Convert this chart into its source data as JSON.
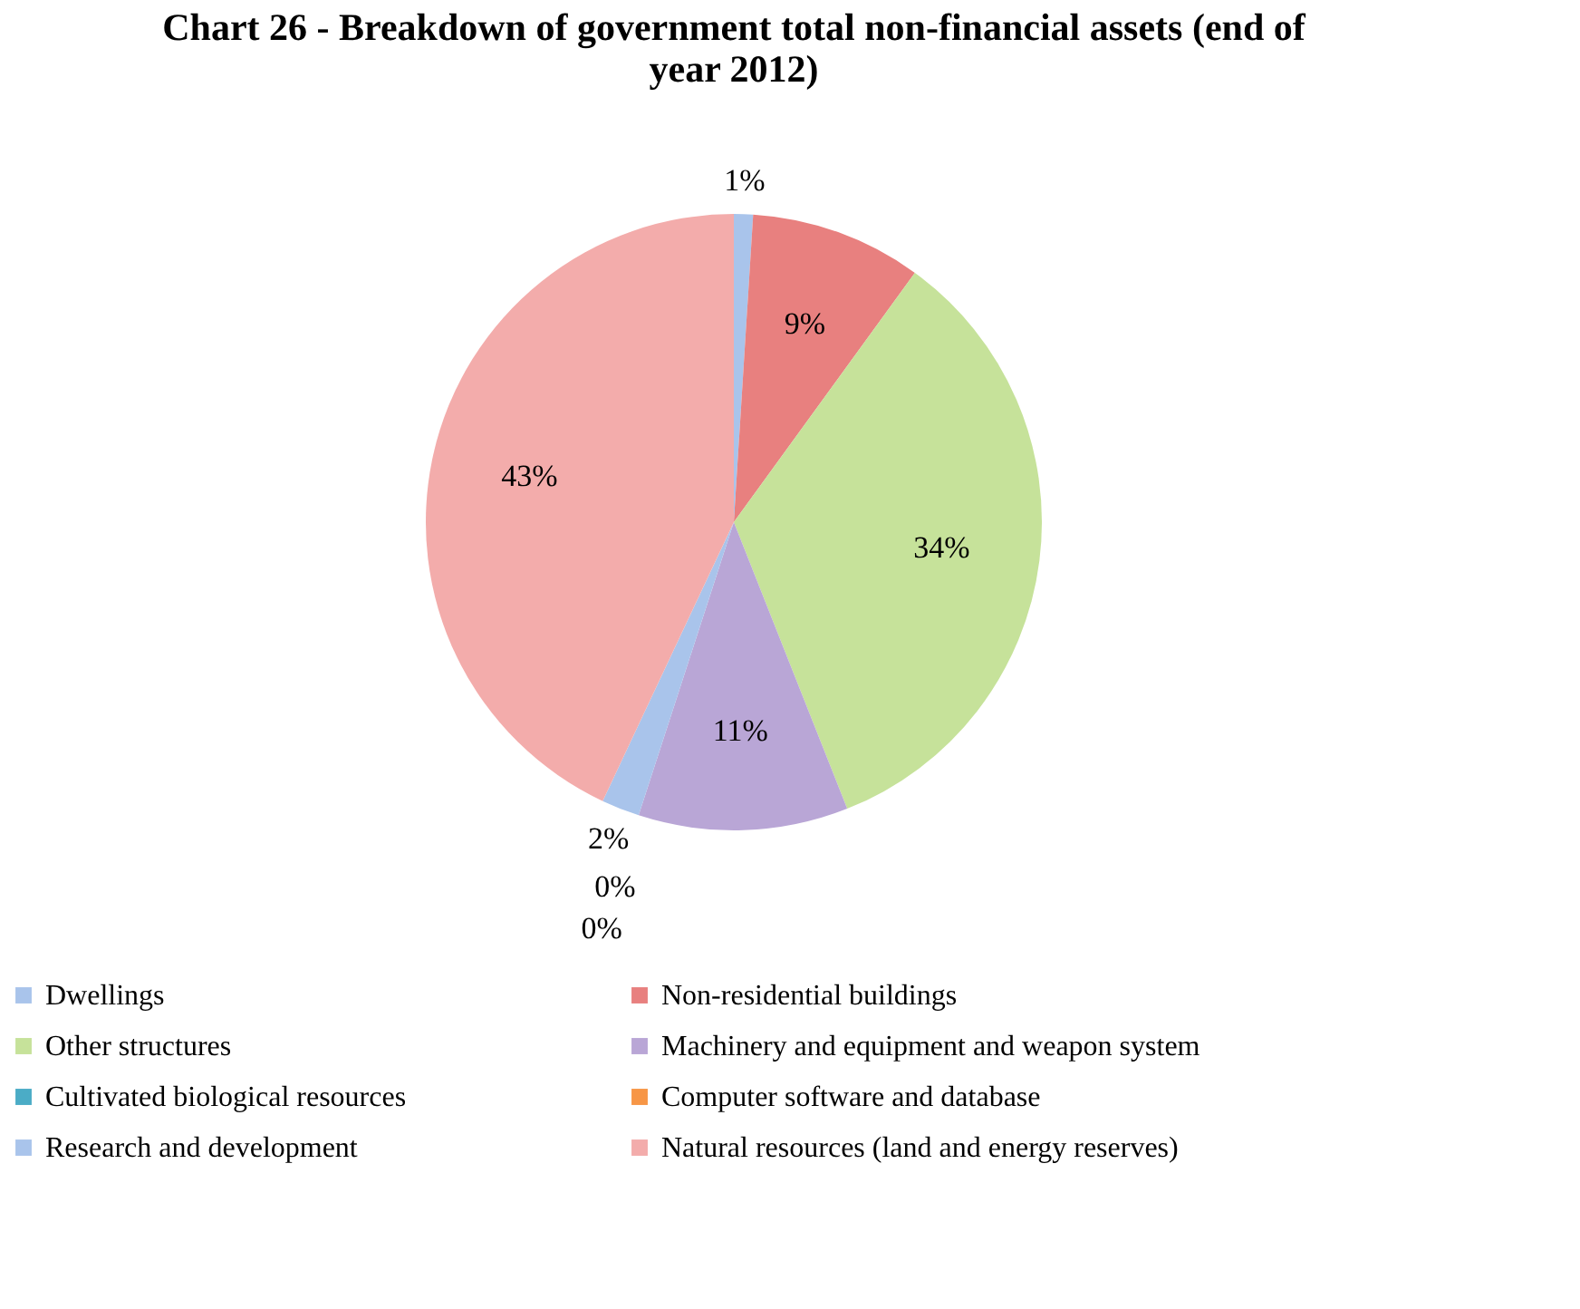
{
  "chart_data": {
    "type": "pie",
    "title": "Chart 26 - Breakdown of government total non-financial assets (end of year 2012)",
    "categories": [
      "Dwellings",
      "Non-residential buildings",
      "Other structures",
      "Machinery and equipment and weapon system",
      "Cultivated biological resources",
      "Computer software and database",
      "Research and development",
      "Natural resources (land and energy reserves)"
    ],
    "values": [
      1,
      9,
      34,
      11,
      0,
      0,
      2,
      43
    ],
    "value_labels": [
      "1%",
      "9%",
      "34%",
      "11%",
      "0%",
      "0%",
      "2%",
      "43%"
    ],
    "colors": [
      "#a9c4eb",
      "#e8807f",
      "#c6e29a",
      "#b9a6d6",
      "#4bacc6",
      "#f79646",
      "#a9c4eb",
      "#f3acab"
    ],
    "legend": "bottom"
  }
}
